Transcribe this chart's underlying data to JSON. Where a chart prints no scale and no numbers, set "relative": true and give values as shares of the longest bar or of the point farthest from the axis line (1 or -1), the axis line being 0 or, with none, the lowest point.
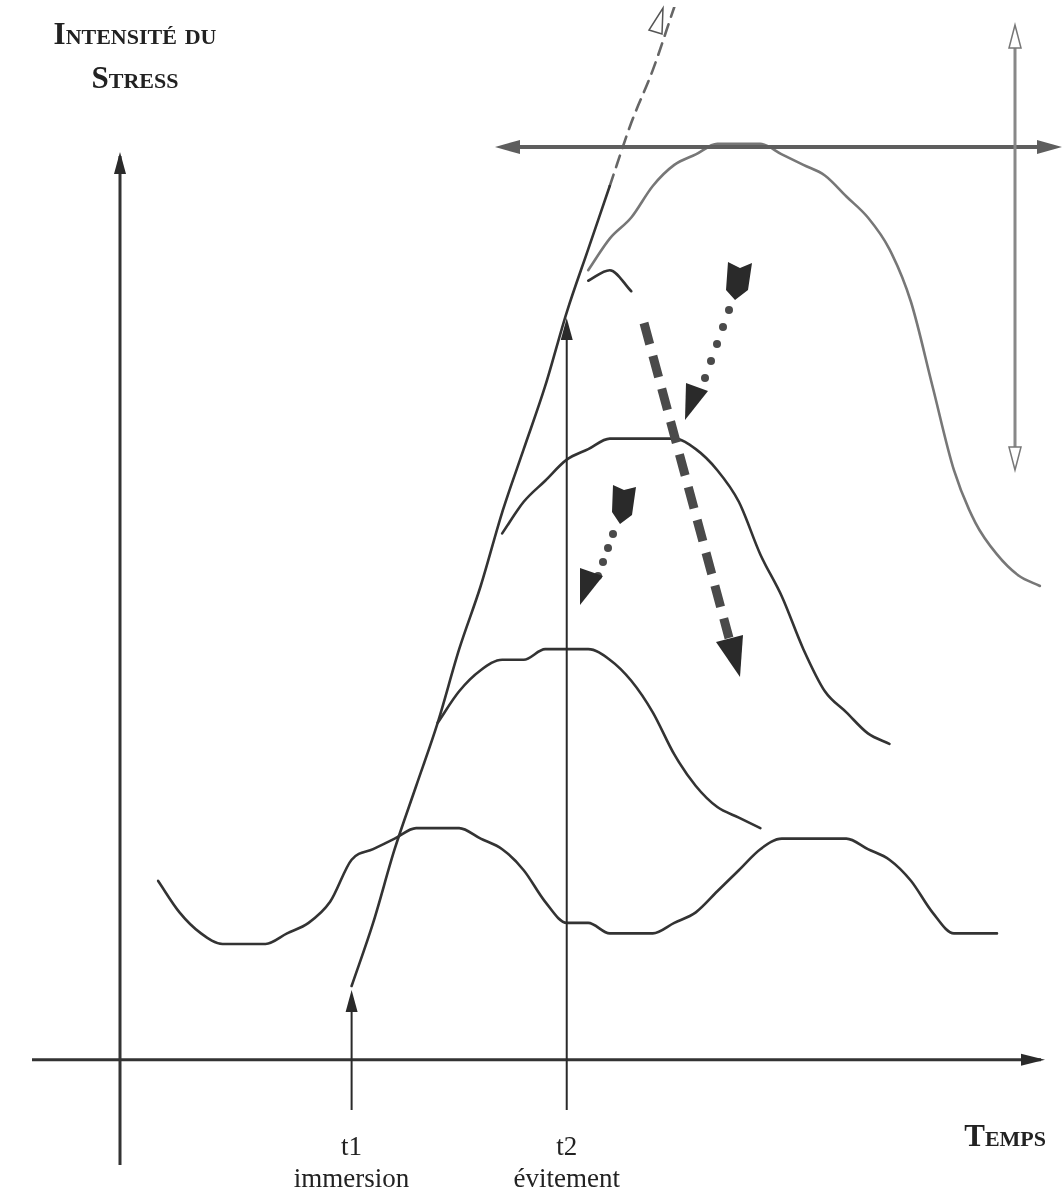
{
  "chart_data": {
    "type": "line",
    "xlabel": "Temps",
    "ylabel": "Intensité du Stress",
    "relative": true,
    "marker": "none",
    "line_style": "solid",
    "categories": [
      null,
      null,
      null,
      null,
      null,
      null,
      null,
      null,
      null,
      "t1\nimmersion",
      null,
      null,
      null,
      null,
      null,
      null,
      null,
      null,
      null,
      "t2\névitement",
      null,
      null,
      null,
      null,
      null,
      null,
      null,
      null,
      null,
      null,
      null,
      null,
      null,
      null,
      null,
      null,
      null,
      null,
      null,
      null,
      null,
      null
    ],
    "series": [
      {
        "color": "#333333",
        "values": [
          0.17,
          0.14,
          0.12,
          0.11,
          0.11,
          0.11,
          0.12,
          0.13,
          0.15,
          0.19,
          0.2,
          0.21,
          0.22,
          0.22,
          0.22,
          0.21,
          0.2,
          0.18,
          0.15,
          0.13,
          0.13,
          0.12,
          0.12,
          0.12,
          0.13,
          0.14,
          0.16,
          0.18,
          0.2,
          0.21,
          0.21,
          0.21,
          0.21,
          0.2,
          0.19,
          0.17,
          0.14,
          0.12,
          0.12,
          0.12,
          null,
          null
        ]
      },
      {
        "color": "#333333",
        "values": [
          null,
          null,
          null,
          null,
          null,
          null,
          null,
          null,
          null,
          null,
          null,
          null,
          null,
          0.32,
          0.35,
          0.37,
          0.38,
          0.38,
          0.39,
          0.39,
          0.39,
          0.38,
          0.36,
          0.33,
          0.29,
          0.26,
          0.24,
          0.23,
          0.22,
          null,
          null,
          null,
          null,
          null,
          null,
          null,
          null,
          null,
          null,
          null,
          null,
          null
        ]
      },
      {
        "color": "#333333",
        "values": [
          null,
          null,
          null,
          null,
          null,
          null,
          null,
          null,
          null,
          null,
          null,
          null,
          null,
          null,
          null,
          null,
          0.5,
          0.53,
          0.55,
          0.57,
          0.58,
          0.59,
          0.59,
          0.59,
          0.59,
          0.58,
          0.56,
          0.53,
          0.48,
          0.44,
          0.39,
          0.35,
          0.33,
          0.31,
          0.3,
          null,
          null,
          null,
          null,
          null,
          null,
          null
        ]
      },
      {
        "color": "#333333",
        "values": [
          null,
          null,
          null,
          null,
          null,
          null,
          null,
          null,
          null,
          null,
          null,
          null,
          null,
          null,
          null,
          null,
          null,
          null,
          null,
          null,
          0.74,
          0.75,
          0.73,
          null,
          null,
          null,
          null,
          null,
          null,
          null,
          null,
          null,
          null,
          null,
          null,
          null,
          null,
          null,
          null,
          null,
          null,
          null
        ]
      },
      {
        "color": "#777777",
        "values": [
          null,
          null,
          null,
          null,
          null,
          null,
          null,
          null,
          null,
          null,
          null,
          null,
          null,
          null,
          null,
          null,
          null,
          null,
          null,
          null,
          0.75,
          0.78,
          0.8,
          0.83,
          0.85,
          0.86,
          0.87,
          0.87,
          0.87,
          0.86,
          0.85,
          0.84,
          0.82,
          0.8,
          0.77,
          0.72,
          0.64,
          0.56,
          0.51,
          0.48,
          0.46,
          0.45
        ]
      },
      {
        "color": "#333333",
        "values": [
          null,
          null,
          null,
          null,
          null,
          null,
          null,
          null,
          null,
          0.07,
          0.13,
          0.2,
          0.26,
          0.32,
          0.39,
          0.45,
          0.52,
          0.58,
          0.64,
          0.71,
          0.77,
          0.83,
          null,
          null,
          null,
          null,
          null,
          null,
          null,
          null,
          null,
          null,
          null,
          null,
          null,
          null,
          null,
          null,
          null,
          null,
          null,
          null
        ]
      },
      {
        "color": "#666666",
        "line_style": "dashed",
        "values": [
          null,
          null,
          null,
          null,
          null,
          null,
          null,
          null,
          null,
          null,
          null,
          null,
          null,
          null,
          null,
          null,
          null,
          null,
          null,
          null,
          null,
          0.83,
          0.89,
          0.94,
          1,
          null,
          null,
          null,
          null,
          null,
          null,
          null,
          null,
          null,
          null,
          null,
          null,
          null,
          null,
          null,
          null,
          null
        ]
      }
    ]
  }
}
